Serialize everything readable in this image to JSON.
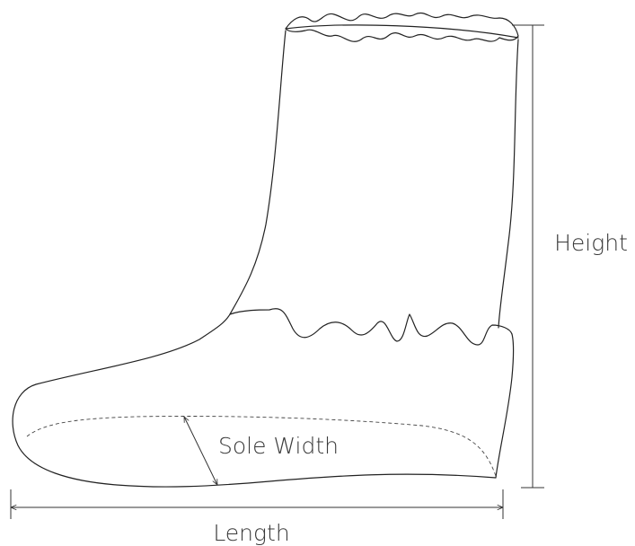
{
  "labels": {
    "height": "Height",
    "sole_width": "Sole Width",
    "length": "Length"
  }
}
